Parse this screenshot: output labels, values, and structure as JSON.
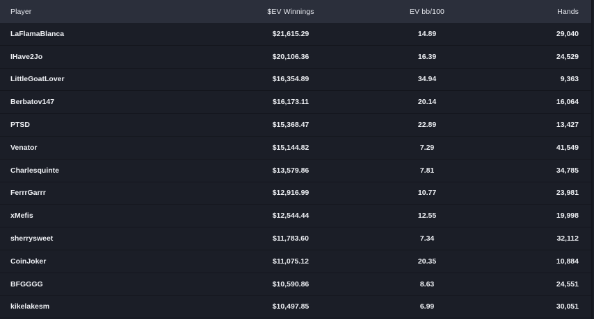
{
  "columns": {
    "player": "Player",
    "ev_winnings": "$EV Winnings",
    "ev_bb100": "EV bb/100",
    "hands": "Hands"
  },
  "rows": [
    {
      "player": "LaFlamaBlanca",
      "ev_winnings": "$21,615.29",
      "ev_bb100": "14.89",
      "hands": "29,040"
    },
    {
      "player": "IHave2Jo",
      "ev_winnings": "$20,106.36",
      "ev_bb100": "16.39",
      "hands": "24,529"
    },
    {
      "player": "LittleGoatLover",
      "ev_winnings": "$16,354.89",
      "ev_bb100": "34.94",
      "hands": "9,363"
    },
    {
      "player": "Berbatov147",
      "ev_winnings": "$16,173.11",
      "ev_bb100": "20.14",
      "hands": "16,064"
    },
    {
      "player": "PTSD",
      "ev_winnings": "$15,368.47",
      "ev_bb100": "22.89",
      "hands": "13,427"
    },
    {
      "player": "Venator",
      "ev_winnings": "$15,144.82",
      "ev_bb100": "7.29",
      "hands": "41,549"
    },
    {
      "player": "Charlesquinte",
      "ev_winnings": "$13,579.86",
      "ev_bb100": "7.81",
      "hands": "34,785"
    },
    {
      "player": "FerrrGarrr",
      "ev_winnings": "$12,916.99",
      "ev_bb100": "10.77",
      "hands": "23,981"
    },
    {
      "player": "xMefis",
      "ev_winnings": "$12,544.44",
      "ev_bb100": "12.55",
      "hands": "19,998"
    },
    {
      "player": "sherrysweet",
      "ev_winnings": "$11,783.60",
      "ev_bb100": "7.34",
      "hands": "32,112"
    },
    {
      "player": "CoinJoker",
      "ev_winnings": "$11,075.12",
      "ev_bb100": "20.35",
      "hands": "10,884"
    },
    {
      "player": "BFGGGG",
      "ev_winnings": "$10,590.86",
      "ev_bb100": "8.63",
      "hands": "24,551"
    },
    {
      "player": "kikelakesm",
      "ev_winnings": "$10,497.85",
      "ev_bb100": "6.99",
      "hands": "30,051"
    }
  ]
}
